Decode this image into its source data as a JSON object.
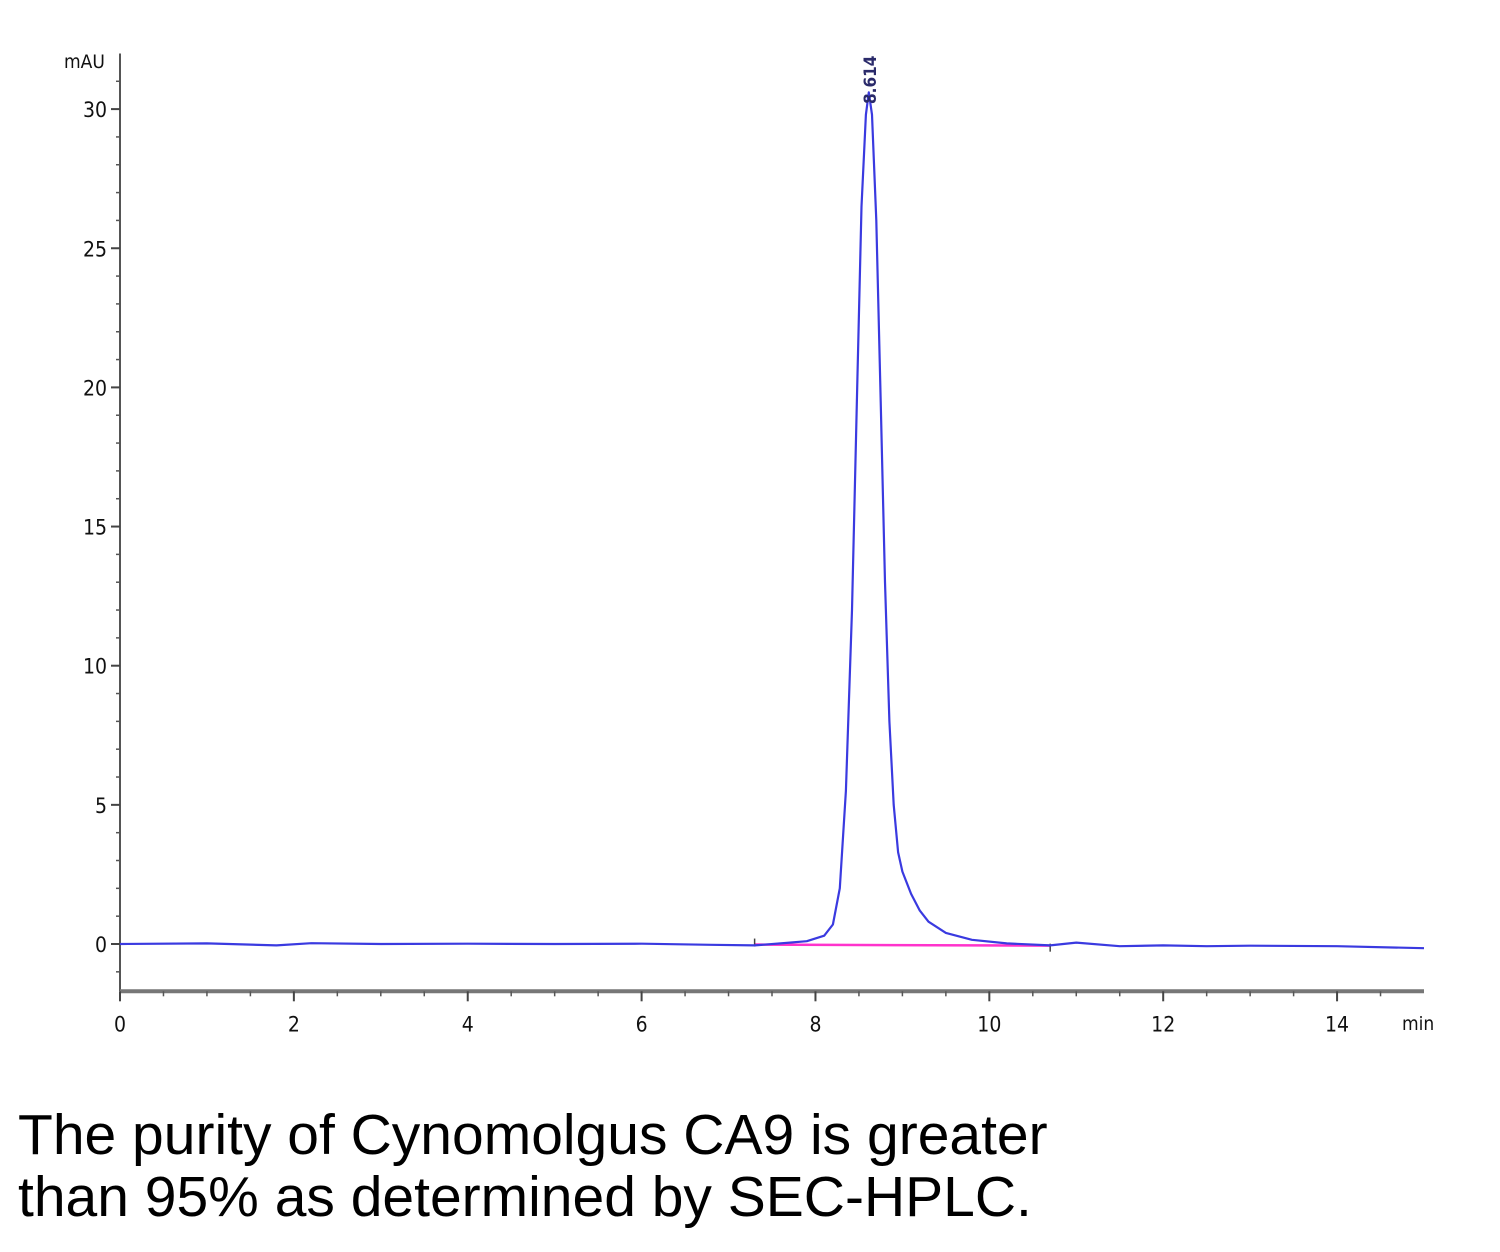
{
  "chart_data": {
    "type": "line",
    "title": "",
    "xlabel": "min",
    "ylabel": "mAU",
    "xlim": [
      0,
      15
    ],
    "ylim": [
      -1.7,
      32
    ],
    "x_ticks": [
      0,
      2,
      4,
      6,
      8,
      10,
      12,
      14
    ],
    "y_ticks": [
      0,
      5,
      10,
      15,
      20,
      25,
      30
    ],
    "peak_label": "8.614",
    "series": [
      {
        "color": "#3a3ae0",
        "x": [
          0,
          1,
          1.8,
          2.2,
          3,
          4,
          5,
          6,
          6.8,
          7.3,
          7.6,
          7.9,
          8.1,
          8.2,
          8.28,
          8.35,
          8.42,
          8.48,
          8.53,
          8.58,
          8.614,
          8.65,
          8.7,
          8.75,
          8.8,
          8.85,
          8.9,
          8.95,
          9.0,
          9.1,
          9.2,
          9.3,
          9.5,
          9.8,
          10.2,
          10.7,
          11.0,
          11.5,
          12.0,
          12.5,
          13.0,
          14.0,
          15.0
        ],
        "y": [
          0,
          0.02,
          -0.05,
          0.03,
          0,
          0.01,
          0,
          0.01,
          -0.03,
          -0.05,
          0.02,
          0.1,
          0.3,
          0.7,
          2.0,
          5.5,
          12.0,
          20.0,
          26.5,
          29.8,
          30.6,
          29.8,
          26.0,
          19.5,
          13.0,
          8.0,
          5.0,
          3.3,
          2.6,
          1.8,
          1.2,
          0.8,
          0.4,
          0.15,
          0.02,
          -0.05,
          0.05,
          -0.08,
          -0.05,
          -0.08,
          -0.06,
          -0.08,
          -0.15
        ]
      }
    ],
    "baseline": {
      "color": "#ff33cc",
      "x": [
        7.3,
        10.7
      ],
      "y": [
        -0.02,
        -0.06
      ]
    }
  },
  "caption": {
    "line1": "The purity of Cynomolgus CA9 is greater",
    "line2": "than 95% as determined by SEC-HPLC."
  }
}
